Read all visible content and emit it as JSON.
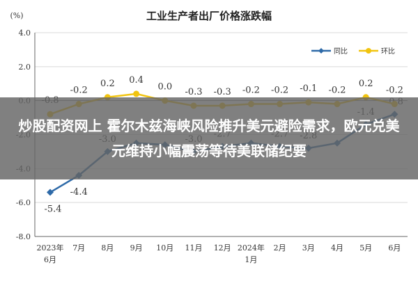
{
  "chart_data": {
    "type": "line",
    "title": "工业生产者出厂价格涨跌幅",
    "unit_label": "(%)",
    "ylim": [
      -8.0,
      4.0
    ],
    "yticks": [
      "4.0",
      "2.0",
      "0.0",
      "-2.0",
      "-4.0",
      "-6.0",
      "-8.0"
    ],
    "ytick_values": [
      4,
      2,
      0,
      -2,
      -4,
      -6,
      -8
    ],
    "categories": [
      "2023年\n6月",
      "7月",
      "8月",
      "9月",
      "10月",
      "11月",
      "12月",
      "2024年\n1月",
      "2月",
      "3月",
      "4月",
      "5月",
      "6月"
    ],
    "grid": true,
    "legend_position": "top-right",
    "series": [
      {
        "name": "同比",
        "color": "#2e6aa8",
        "values": [
          -5.4,
          -4.4,
          -3.0,
          -2.5,
          -2.6,
          -3.0,
          -2.7,
          -2.5,
          -2.7,
          -2.8,
          -2.5,
          -1.4,
          -0.8
        ],
        "labels": [
          "-5.4",
          "-4.4",
          "-3.0",
          "",
          "",
          "-3.0",
          "-2.7",
          "",
          "-2.7",
          "-2.8",
          "",
          "-1.4",
          "-0.8"
        ]
      },
      {
        "name": "环比",
        "color": "#f1c40f",
        "values": [
          -0.8,
          -0.2,
          0.2,
          0.4,
          0.0,
          -0.3,
          -0.3,
          -0.2,
          -0.2,
          -0.1,
          -0.2,
          0.2,
          -0.2
        ],
        "labels": [
          "-0.8",
          "-0.2",
          "0.2",
          "0.4",
          "0.0",
          "-0.3",
          "-0.3",
          "-0.2",
          "-0.2",
          "-0.1",
          "-0.2",
          "0.2",
          "-0.2"
        ]
      }
    ]
  },
  "overlay": {
    "text": "炒股配资网上 霍尔木兹海峡风险推升美元避险需求，欧元兑美元维持小幅震荡等待美联储纪要"
  }
}
